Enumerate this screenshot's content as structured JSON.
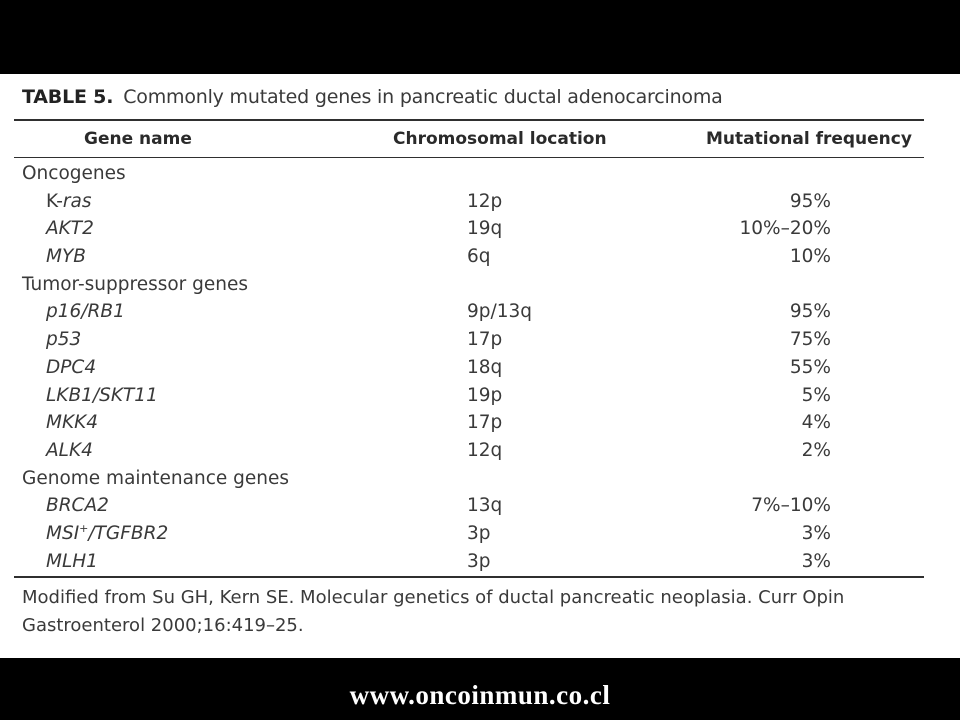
{
  "table": {
    "label": "TABLE 5.",
    "title": "Commonly mutated genes in pancreatic ductal adenocarcinoma",
    "columns": [
      "Gene name",
      "Chromosomal location",
      "Mutational frequency"
    ],
    "groups": [
      {
        "name": "Oncogenes",
        "rows": [
          {
            "gene": "K-ras",
            "location": "12p",
            "frequency": "95%"
          },
          {
            "gene": "AKT2",
            "location": "19q",
            "frequency": "10%–20%"
          },
          {
            "gene": "MYB",
            "location": "6q",
            "frequency": "10%"
          }
        ]
      },
      {
        "name": "Tumor-suppressor genes",
        "rows": [
          {
            "gene": "p16/RB1",
            "location": "9p/13q",
            "frequency": "95%"
          },
          {
            "gene": "p53",
            "location": "17p",
            "frequency": "75%"
          },
          {
            "gene": "DPC4",
            "location": "18q",
            "frequency": "55%"
          },
          {
            "gene": "LKB1/SKT11",
            "location": "19p",
            "frequency": "5%"
          },
          {
            "gene": "MKK4",
            "location": "17p",
            "frequency": "4%"
          },
          {
            "gene": "ALK4",
            "location": "12q",
            "frequency": "2%"
          }
        ]
      },
      {
        "name": "Genome maintenance genes",
        "rows": [
          {
            "gene": "BRCA2",
            "location": "13q",
            "frequency": "7%–10%"
          },
          {
            "gene": "MSI⁺/TGFBR2",
            "location": "3p",
            "frequency": "3%"
          },
          {
            "gene": "MLH1",
            "location": "3p",
            "frequency": "3%"
          }
        ]
      }
    ],
    "footnote": "Modified from Su GH, Kern SE. Molecular genetics of ductal pancreatic neoplasia. Curr Opin Gastroenterol 2000;16:419–25."
  },
  "watermark": "www.oncoinmun.co.cl"
}
